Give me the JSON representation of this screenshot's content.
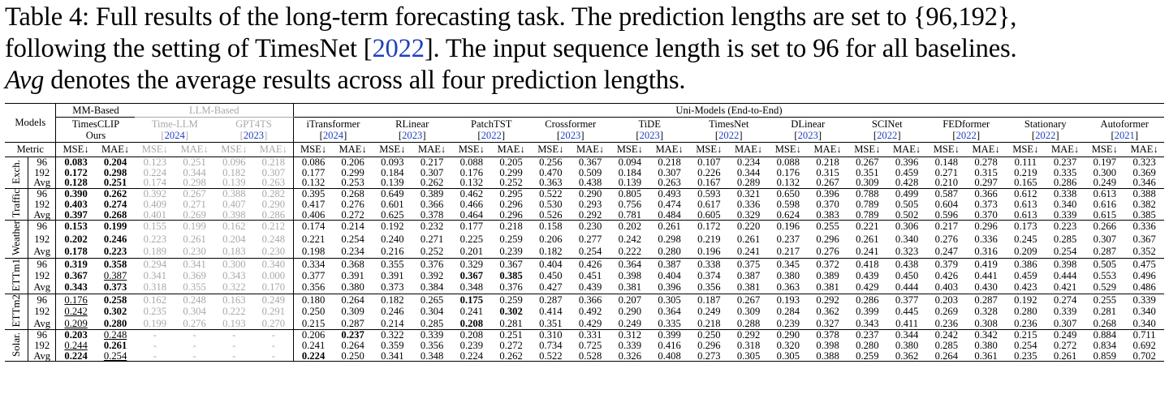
{
  "caption": {
    "line1": "Table 4: Full results of the long-term forecasting task. The prediction lengths are set to {96,192},",
    "line2_a": "following the setting of TimesNet [",
    "line2_cite": "2022",
    "line2_b": "]. The input sequence length is set to 96 for all baselines.",
    "line3_em": "Avg",
    "line3_rest": " denotes the average results across all four prediction lengths."
  },
  "header": {
    "models_label": "Models",
    "metric_label": "Metric",
    "groups": [
      "MM-Based",
      "LLM-Based",
      "Uni-Models (End-to-End)"
    ],
    "mse": "MSE↓",
    "mae": "MAE↓"
  },
  "models": [
    {
      "name": "TimesCLIP",
      "sub": "Ours",
      "cite": ""
    },
    {
      "name": "Time-LLM",
      "sub": "",
      "cite": "2024"
    },
    {
      "name": "GPT4TS",
      "sub": "",
      "cite": "2023"
    },
    {
      "name": "iTransformer",
      "sub": "",
      "cite": "2024"
    },
    {
      "name": "RLinear",
      "sub": "",
      "cite": "2023"
    },
    {
      "name": "PatchTST",
      "sub": "",
      "cite": "2022"
    },
    {
      "name": "Crossformer",
      "sub": "",
      "cite": "2023"
    },
    {
      "name": "TiDE",
      "sub": "",
      "cite": "2023"
    },
    {
      "name": "TimesNet",
      "sub": "",
      "cite": "2022"
    },
    {
      "name": "DLinear",
      "sub": "",
      "cite": "2023"
    },
    {
      "name": "SCINet",
      "sub": "",
      "cite": "2022"
    },
    {
      "name": "FEDformer",
      "sub": "",
      "cite": "2022"
    },
    {
      "name": "Stationary",
      "sub": "",
      "cite": "2022"
    },
    {
      "name": "Autoformer",
      "sub": "",
      "cite": "2021"
    }
  ],
  "datasets": [
    {
      "name": "Exch.",
      "rows": [
        {
          "len": "96",
          "v": [
            "0.083",
            "0.204",
            "0.123",
            "0.251",
            "0.096",
            "0.218",
            "0.086",
            "0.206",
            "0.093",
            "0.217",
            "0.088",
            "0.205",
            "0.256",
            "0.367",
            "0.094",
            "0.218",
            "0.107",
            "0.234",
            "0.088",
            "0.218",
            "0.267",
            "0.396",
            "0.148",
            "0.278",
            "0.111",
            "0.237",
            "0.197",
            "0.323"
          ],
          "bold": [
            0,
            1
          ],
          "under": []
        },
        {
          "len": "192",
          "v": [
            "0.172",
            "0.298",
            "0.224",
            "0.344",
            "0.182",
            "0.307",
            "0.177",
            "0.299",
            "0.184",
            "0.307",
            "0.176",
            "0.299",
            "0.470",
            "0.509",
            "0.184",
            "0.307",
            "0.226",
            "0.344",
            "0.176",
            "0.315",
            "0.351",
            "0.459",
            "0.271",
            "0.315",
            "0.219",
            "0.335",
            "0.300",
            "0.369"
          ],
          "bold": [
            0,
            1
          ],
          "under": []
        },
        {
          "len": "Avg",
          "v": [
            "0.128",
            "0.251",
            "0.174",
            "0.298",
            "0.139",
            "0.263",
            "0.132",
            "0.253",
            "0.139",
            "0.262",
            "0.132",
            "0.252",
            "0.363",
            "0.438",
            "0.139",
            "0.263",
            "0.167",
            "0.289",
            "0.132",
            "0.267",
            "0.309",
            "0.428",
            "0.210",
            "0.297",
            "0.165",
            "0.286",
            "0.249",
            "0.346"
          ],
          "bold": [
            0,
            1
          ],
          "under": []
        }
      ]
    },
    {
      "name": "Traffic",
      "rows": [
        {
          "len": "96",
          "v": [
            "0.390",
            "0.262",
            "0.392",
            "0.267",
            "0.388",
            "0.282",
            "0.395",
            "0.268",
            "0.649",
            "0.389",
            "0.462",
            "0.295",
            "0.522",
            "0.290",
            "0.805",
            "0.493",
            "0.593",
            "0.321",
            "0.650",
            "0.396",
            "0.788",
            "0.499",
            "0.587",
            "0.366",
            "0.612",
            "0.338",
            "0.613",
            "0.388"
          ],
          "bold": [
            0,
            1
          ],
          "under": []
        },
        {
          "len": "192",
          "v": [
            "0.403",
            "0.274",
            "0.409",
            "0.271",
            "0.407",
            "0.290",
            "0.417",
            "0.276",
            "0.601",
            "0.366",
            "0.466",
            "0.296",
            "0.530",
            "0.293",
            "0.756",
            "0.474",
            "0.617",
            "0.336",
            "0.598",
            "0.370",
            "0.789",
            "0.505",
            "0.604",
            "0.373",
            "0.613",
            "0.340",
            "0.616",
            "0.382"
          ],
          "bold": [
            0,
            1
          ],
          "under": []
        },
        {
          "len": "Avg",
          "v": [
            "0.397",
            "0.268",
            "0.401",
            "0.269",
            "0.398",
            "0.286",
            "0.406",
            "0.272",
            "0.625",
            "0.378",
            "0.464",
            "0.296",
            "0.526",
            "0.292",
            "0.781",
            "0.484",
            "0.605",
            "0.329",
            "0.624",
            "0.383",
            "0.789",
            "0.502",
            "0.596",
            "0.370",
            "0.613",
            "0.339",
            "0.615",
            "0.385"
          ],
          "bold": [
            0,
            1
          ],
          "under": []
        }
      ]
    },
    {
      "name": "Weather",
      "rows": [
        {
          "len": "96",
          "v": [
            "0.153",
            "0.199",
            "0.155",
            "0.199",
            "0.162",
            "0.212",
            "0.174",
            "0.214",
            "0.192",
            "0.232",
            "0.177",
            "0.218",
            "0.158",
            "0.230",
            "0.202",
            "0.261",
            "0.172",
            "0.220",
            "0.196",
            "0.255",
            "0.221",
            "0.306",
            "0.217",
            "0.296",
            "0.173",
            "0.223",
            "0.266",
            "0.336"
          ],
          "bold": [
            0,
            1
          ],
          "under": []
        },
        {
          "len": "192",
          "v": [
            "0.202",
            "0.246",
            "0.223",
            "0.261",
            "0.204",
            "0.248",
            "0.221",
            "0.254",
            "0.240",
            "0.271",
            "0.225",
            "0.259",
            "0.206",
            "0.277",
            "0.242",
            "0.298",
            "0.219",
            "0.261",
            "0.237",
            "0.296",
            "0.261",
            "0.340",
            "0.276",
            "0.336",
            "0.245",
            "0.285",
            "0.307",
            "0.367"
          ],
          "bold": [
            0,
            1
          ],
          "under": []
        },
        {
          "len": "Avg",
          "v": [
            "0.178",
            "0.223",
            "0.189",
            "0.230",
            "0.183",
            "0.230",
            "0.198",
            "0.234",
            "0.216",
            "0.252",
            "0.201",
            "0.239",
            "0.182",
            "0.254",
            "0.222",
            "0.280",
            "0.196",
            "0.241",
            "0.217",
            "0.276",
            "0.241",
            "0.323",
            "0.247",
            "0.316",
            "0.209",
            "0.254",
            "0.287",
            "0.352"
          ],
          "bold": [
            0,
            1
          ],
          "under": []
        }
      ]
    },
    {
      "name": "ETTm1",
      "rows": [
        {
          "len": "96",
          "v": [
            "0.319",
            "0.358",
            "0.294",
            "0.341",
            "0.300",
            "0.340",
            "0.334",
            "0.368",
            "0.355",
            "0.376",
            "0.329",
            "0.367",
            "0.404",
            "0.426",
            "0.364",
            "0.387",
            "0.338",
            "0.375",
            "0.345",
            "0.372",
            "0.418",
            "0.438",
            "0.379",
            "0.419",
            "0.386",
            "0.398",
            "0.505",
            "0.475"
          ],
          "bold": [
            0,
            1
          ],
          "under": []
        },
        {
          "len": "192",
          "v": [
            "0.367",
            "0.387",
            "0.341",
            "0.369",
            "0.343",
            "0.000",
            "0.377",
            "0.391",
            "0.391",
            "0.392",
            "0.367",
            "0.385",
            "0.450",
            "0.451",
            "0.398",
            "0.404",
            "0.374",
            "0.387",
            "0.380",
            "0.389",
            "0.439",
            "0.450",
            "0.426",
            "0.441",
            "0.459",
            "0.444",
            "0.553",
            "0.496"
          ],
          "bold": [
            0,
            10,
            11
          ],
          "under": [
            1
          ]
        },
        {
          "len": "Avg",
          "v": [
            "0.343",
            "0.373",
            "0.318",
            "0.355",
            "0.322",
            "0.170",
            "0.356",
            "0.380",
            "0.373",
            "0.384",
            "0.348",
            "0.376",
            "0.427",
            "0.439",
            "0.381",
            "0.396",
            "0.356",
            "0.381",
            "0.363",
            "0.381",
            "0.429",
            "0.444",
            "0.403",
            "0.430",
            "0.423",
            "0.421",
            "0.529",
            "0.486"
          ],
          "bold": [
            0,
            1
          ],
          "under": []
        }
      ]
    },
    {
      "name": "ETTm2",
      "rows": [
        {
          "len": "96",
          "v": [
            "0.176",
            "0.258",
            "0.162",
            "0.248",
            "0.163",
            "0.249",
            "0.180",
            "0.264",
            "0.182",
            "0.265",
            "0.175",
            "0.259",
            "0.287",
            "0.366",
            "0.207",
            "0.305",
            "0.187",
            "0.267",
            "0.193",
            "0.292",
            "0.286",
            "0.377",
            "0.203",
            "0.287",
            "0.192",
            "0.274",
            "0.255",
            "0.339"
          ],
          "bold": [
            1,
            10
          ],
          "under": [
            0
          ]
        },
        {
          "len": "192",
          "v": [
            "0.242",
            "0.302",
            "0.235",
            "0.304",
            "0.222",
            "0.291",
            "0.250",
            "0.309",
            "0.246",
            "0.304",
            "0.241",
            "0.302",
            "0.414",
            "0.492",
            "0.290",
            "0.364",
            "0.249",
            "0.309",
            "0.284",
            "0.362",
            "0.399",
            "0.445",
            "0.269",
            "0.328",
            "0.280",
            "0.339",
            "0.281",
            "0.340"
          ],
          "bold": [
            1,
            11
          ],
          "under": [
            0
          ]
        },
        {
          "len": "Avg",
          "v": [
            "0.209",
            "0.280",
            "0.199",
            "0.276",
            "0.193",
            "0.270",
            "0.215",
            "0.287",
            "0.214",
            "0.285",
            "0.208",
            "0.281",
            "0.351",
            "0.429",
            "0.249",
            "0.335",
            "0.218",
            "0.288",
            "0.239",
            "0.327",
            "0.343",
            "0.411",
            "0.236",
            "0.308",
            "0.236",
            "0.307",
            "0.268",
            "0.340"
          ],
          "bold": [
            1,
            10
          ],
          "under": [
            0
          ]
        }
      ]
    },
    {
      "name": "Solar.",
      "rows": [
        {
          "len": "96",
          "v": [
            "0.203",
            "0.248",
            "-",
            "-",
            "-",
            "-",
            "0.206",
            "0.237",
            "0.322",
            "0.339",
            "0.208",
            "0.251",
            "0.310",
            "0.331",
            "0.312",
            "0.399",
            "0.250",
            "0.292",
            "0.290",
            "0.378",
            "0.237",
            "0.344",
            "0.242",
            "0.342",
            "0.215",
            "0.249",
            "0.884",
            "0.711"
          ],
          "bold": [
            0,
            7
          ],
          "under": [
            1
          ]
        },
        {
          "len": "192",
          "v": [
            "0.244",
            "0.261",
            "-",
            "-",
            "-",
            "-",
            "0.241",
            "0.264",
            "0.359",
            "0.356",
            "0.239",
            "0.272",
            "0.734",
            "0.725",
            "0.339",
            "0.416",
            "0.296",
            "0.318",
            "0.320",
            "0.398",
            "0.280",
            "0.380",
            "0.285",
            "0.380",
            "0.254",
            "0.272",
            "0.834",
            "0.692"
          ],
          "bold": [
            1
          ],
          "under": [
            0
          ]
        },
        {
          "len": "Avg",
          "v": [
            "0.224",
            "0.254",
            "-",
            "-",
            "-",
            "-",
            "0.224",
            "0.250",
            "0.341",
            "0.348",
            "0.224",
            "0.262",
            "0.522",
            "0.528",
            "0.326",
            "0.408",
            "0.273",
            "0.305",
            "0.305",
            "0.388",
            "0.259",
            "0.362",
            "0.264",
            "0.361",
            "0.235",
            "0.261",
            "0.859",
            "0.702"
          ],
          "bold": [
            0,
            6
          ],
          "under": [
            1
          ]
        }
      ]
    }
  ]
}
